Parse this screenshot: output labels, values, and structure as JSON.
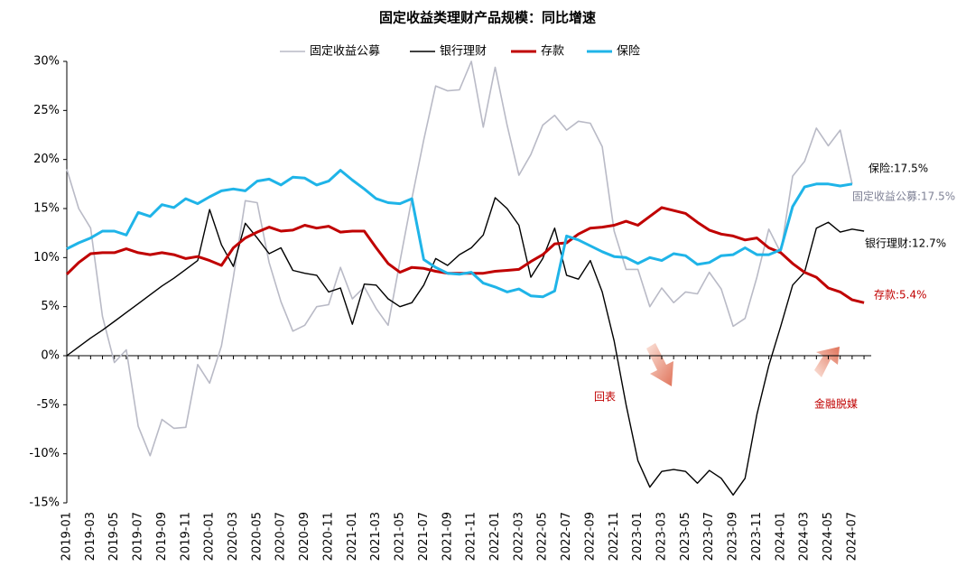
{
  "chart_data": {
    "type": "line",
    "title": "固定收益类理财产品规模：同比增速",
    "categories": [
      "2019-01",
      null,
      "2019-03",
      null,
      "2019-05",
      null,
      "2019-07",
      null,
      "2019-09",
      null,
      "2019-11",
      null,
      "2020-01",
      null,
      "2020-03",
      null,
      "2020-05",
      null,
      "2020-07",
      null,
      "2020-09",
      null,
      "2020-11",
      null,
      "2021-01",
      null,
      "2021-03",
      null,
      "2021-05",
      null,
      "2021-07",
      null,
      "2021-09",
      null,
      "2021-11",
      null,
      "2022-01",
      null,
      "2022-03",
      null,
      "2022-05",
      null,
      "2022-07",
      null,
      "2022-09",
      null,
      "2022-11",
      null,
      "2023-01",
      null,
      "2023-03",
      null,
      "2023-05",
      null,
      "2023-07",
      null,
      "2023-09",
      null,
      "2023-11",
      null,
      "2024-01",
      null,
      "2024-03",
      null,
      "2024-05",
      null,
      "2024-07",
      null
    ],
    "ylim": [
      -15,
      30
    ],
    "yticks": [
      {
        "value": -15,
        "label": "-15%"
      },
      {
        "value": -10,
        "label": "-10%"
      },
      {
        "value": -5,
        "label": "-5%"
      },
      {
        "value": 0,
        "label": "0%"
      },
      {
        "value": 5,
        "label": "5%"
      },
      {
        "value": 10,
        "label": "10%"
      },
      {
        "value": 15,
        "label": "15%"
      },
      {
        "value": 20,
        "label": "20%"
      },
      {
        "value": 25,
        "label": "25%"
      },
      {
        "value": 30,
        "label": "30%"
      }
    ],
    "grid": false,
    "legend": "top",
    "series": [
      {
        "name": "固定收益公募",
        "color": "#b9bac6",
        "width": 1.6,
        "values": [
          19,
          15,
          13,
          4,
          -0.7,
          0.6,
          -7.2,
          -10.2,
          -6.5,
          -7.4,
          -7.3,
          -0.9,
          -2.8,
          1,
          8,
          15.8,
          15.6,
          9.5,
          5.5,
          2.5,
          3.1,
          5,
          5.2,
          9,
          5.8,
          7,
          4.8,
          3.1,
          9.6,
          16,
          22,
          27.5,
          27,
          27.1,
          30,
          23.3,
          29.4,
          23.5,
          18.4,
          20.5,
          23.5,
          24.5,
          23,
          23.9,
          23.7,
          21.3,
          12.7,
          8.8,
          8.8,
          5,
          6.9,
          5.4,
          6.5,
          6.3,
          8.5,
          6.8,
          3,
          3.8,
          8,
          12.9,
          10.5,
          18.3,
          19.8,
          23.2,
          21.4,
          23,
          17.5,
          null
        ]
      },
      {
        "name": "银行理财",
        "color": "#000000",
        "width": 1.4,
        "values": [
          0,
          0.9,
          1.8,
          2.6,
          3.5,
          4.4,
          5.3,
          6.2,
          7.1,
          7.9,
          8.8,
          9.7,
          14.9,
          11.3,
          9.1,
          13.5,
          12,
          10.4,
          11,
          8.7,
          8.4,
          8.2,
          6.5,
          6.9,
          3.2,
          7.3,
          7.2,
          5.8,
          5,
          5.4,
          7.2,
          9.9,
          9.2,
          10.3,
          11,
          12.3,
          16.1,
          15,
          13.3,
          8,
          9.9,
          13,
          8.2,
          7.8,
          9.7,
          6.5,
          1.5,
          -5,
          -10.7,
          -13.4,
          -11.8,
          -11.6,
          -11.8,
          -13,
          -11.7,
          -12.5,
          -14.2,
          -12.5,
          -6,
          -1,
          3,
          7.2,
          8.5,
          13,
          13.6,
          12.6,
          12.9,
          12.7
        ]
      },
      {
        "name": "存款",
        "color": "#c00000",
        "width": 3,
        "values": [
          8.3,
          9.5,
          10.4,
          10.5,
          10.5,
          10.9,
          10.5,
          10.3,
          10.5,
          10.3,
          9.9,
          10.1,
          9.7,
          9.2,
          11,
          12,
          12.6,
          13.1,
          12.7,
          12.8,
          13.3,
          13,
          13.2,
          12.6,
          12.7,
          12.7,
          11,
          9.4,
          8.5,
          9,
          8.9,
          8.6,
          8.4,
          8.4,
          8.4,
          8.4,
          8.6,
          8.7,
          8.8,
          9.6,
          10.3,
          11.4,
          11.5,
          12.4,
          13,
          13.1,
          13.3,
          13.7,
          13.3,
          14.2,
          15.1,
          14.8,
          14.5,
          13.6,
          12.8,
          12.4,
          12.2,
          11.8,
          12,
          11,
          10.5,
          9.4,
          8.5,
          8,
          6.9,
          6.5,
          5.7,
          5.4
        ]
      },
      {
        "name": "保险",
        "color": "#1fb4e8",
        "width": 3,
        "values": [
          10.9,
          11.5,
          12,
          12.7,
          12.7,
          12.3,
          14.6,
          14.2,
          15.4,
          15.1,
          16,
          15.5,
          16.2,
          16.8,
          17,
          16.8,
          17.8,
          18,
          17.4,
          18.2,
          18.1,
          17.4,
          17.8,
          18.9,
          17.9,
          17,
          16,
          15.6,
          15.5,
          16,
          9.8,
          9,
          8.4,
          8.3,
          8.5,
          7.4,
          7,
          6.5,
          6.8,
          6.1,
          6,
          6.6,
          12.2,
          11.8,
          11.2,
          10.6,
          10.1,
          10,
          9.4,
          10,
          9.7,
          10.4,
          10.2,
          9.3,
          9.5,
          10.2,
          10.3,
          11,
          10.3,
          10.3,
          10.8,
          15.2,
          17.2,
          17.5,
          17.5,
          17.3,
          17.5,
          null
        ]
      }
    ],
    "annotations": [
      {
        "text": "保险:17.5%",
        "color": "#000000"
      },
      {
        "text": "固定收益公募:17.5%",
        "color": "#7f8296"
      },
      {
        "text": "银行理财:12.7%",
        "color": "#000000"
      },
      {
        "text": "存款:5.4%",
        "color": "#c00000"
      },
      {
        "text": "回表",
        "color": "#c00000"
      },
      {
        "text": "金融脱媒",
        "color": "#c00000"
      }
    ]
  }
}
